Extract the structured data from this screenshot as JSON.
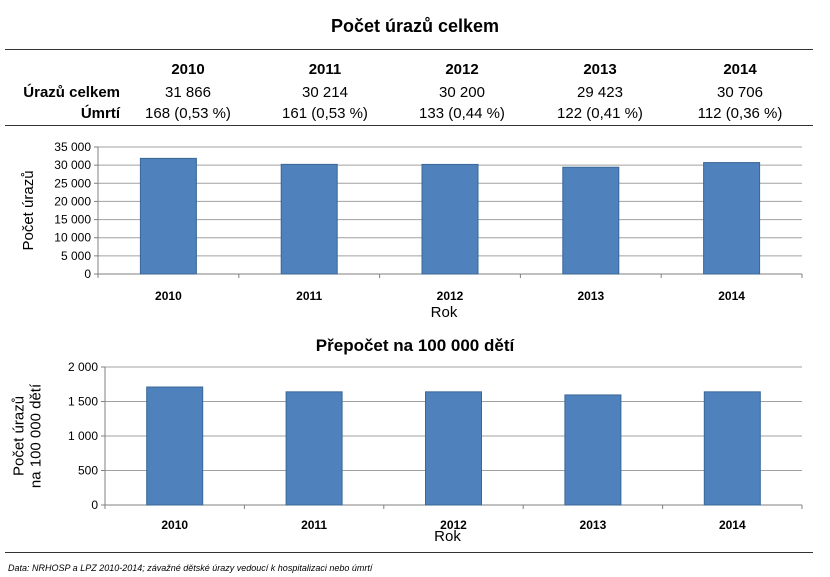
{
  "title": "Počet úrazů celkem",
  "table": {
    "years": [
      "2010",
      "2011",
      "2012",
      "2013",
      "2014"
    ],
    "rows": [
      {
        "label": "Úrazů celkem",
        "values": [
          "31 866",
          "30 214",
          "30 200",
          "29 423",
          "30 706"
        ]
      },
      {
        "label": "Úmrtí",
        "values": [
          "168 (0,53 %)",
          "161 (0,53 %)",
          "133 (0,44 %)",
          "122 (0,41 %)",
          "112 (0,36 %)"
        ]
      }
    ]
  },
  "chart_data": [
    {
      "type": "bar",
      "title": "",
      "categories": [
        "2010",
        "2011",
        "2012",
        "2013",
        "2014"
      ],
      "values": [
        31866,
        30214,
        30200,
        29423,
        30706
      ],
      "xlabel": "Rok",
      "ylabel": "Počet úrazů",
      "ylim": [
        0,
        35000
      ],
      "yticks": [
        "0",
        "5 000",
        "10 000",
        "15 000",
        "20 000",
        "25 000",
        "30 000",
        "35 000"
      ],
      "ytick_values": [
        0,
        5000,
        10000,
        15000,
        20000,
        25000,
        30000,
        35000
      ],
      "grid": true,
      "bar_color": "#4F81BD"
    },
    {
      "type": "bar",
      "title": "Přepočet na 100 000 dětí",
      "categories": [
        "2010",
        "2011",
        "2012",
        "2013",
        "2014"
      ],
      "values": [
        1710,
        1640,
        1640,
        1595,
        1640
      ],
      "xlabel": "Rok",
      "ylabel": [
        "Počet úrazů",
        "na 100 000 dětí"
      ],
      "ylim": [
        0,
        2000
      ],
      "yticks": [
        "0",
        "500",
        "1 000",
        "1 500",
        "2 000"
      ],
      "ytick_values": [
        0,
        500,
        1000,
        1500,
        2000
      ],
      "grid": true,
      "bar_color": "#4F81BD"
    }
  ],
  "source": "Data: NRHOSP a LPZ 2010-2014; závažné dětské úrazy vedoucí k hospitalizaci nebo úmrtí"
}
